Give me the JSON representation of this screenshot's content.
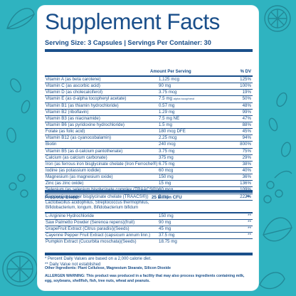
{
  "label": {
    "title": "Supplement Facts",
    "serving_line": "Serving Size: 3 Capsules | Servings Per Container: 30",
    "header": {
      "amount": "Amount Per Serving",
      "dv": "% DV"
    }
  },
  "nutrients": [
    {
      "name": "Vitamin A (as beta carotene)",
      "amount": "1,125 mcg",
      "dv": "125%"
    },
    {
      "name": "Vitamin C (as ascorbic acid)",
      "amount": "90 mg",
      "dv": "100%"
    },
    {
      "name": "Vitamin D (as cholecalciferol)",
      "amount": "3.75 mcg",
      "dv": "19%"
    },
    {
      "name": "Vitamin E (as d-alpha tocopheryl acetate)",
      "amount": "7.5 mg",
      "note": "alpha tocopherol",
      "dv": "50%"
    },
    {
      "name": "Vitamin B1 (as thiamin hydrochloride)",
      "amount": "0.57 mg",
      "dv": "48%"
    },
    {
      "name": "Vitamin B2 (riboflavin)",
      "amount": "1.29 mg",
      "dv": "99%"
    },
    {
      "name": "Vitamin B3 (as niacinamide)",
      "amount": "7.5 mg NE",
      "dv": "47%"
    },
    {
      "name": "Vitamin B6 (as pyridoxine hydrochloride)",
      "amount": "1.5 mg",
      "dv": "88%"
    },
    {
      "name": "Folate (as folic acid)",
      "amount": "180 mcg DFE",
      "dv": "45%"
    },
    {
      "name": "Vitamin B12 (as cyanocobalamin)",
      "amount": "2.25 mcg",
      "dv": "94%"
    },
    {
      "name": "Biotin",
      "amount": "240 mcg",
      "dv": "800%"
    },
    {
      "name": "Vitamin B5 (as d-calcium pantothenate)",
      "amount": "3.75 mg",
      "dv": "75%"
    },
    {
      "name": "Calcium (as calcium carbonate)",
      "amount": "375 mg",
      "dv": "29%"
    },
    {
      "name": "Iron (as ferrous iron bisglycinate chelate (Iron Ferroche®)",
      "amount": "6.75 mg",
      "dv": "38%"
    },
    {
      "name": "Iodine (as potassium iodide)",
      "amount": "60 mcg",
      "dv": "40%"
    },
    {
      "name": "Magnesium (as magnesium oxide)",
      "amount": "150 mg",
      "dv": "36%"
    },
    {
      "name": "Zinc (as zinc oxide)",
      "amount": "15 mg",
      "dv": "136%"
    },
    {
      "name": "Selenium (as selenium bisglycinate complex (TRAACS®))",
      "amount": "60 mcg",
      "dv": "109%"
    },
    {
      "name": "Copper (as copper bisglycinate chelate (TRAACS®))",
      "amount": "2 mg",
      "dv": "222%"
    }
  ],
  "blend": {
    "name": "Probiotic Blend:",
    "amount": "25 Billion CFU",
    "dv": "**",
    "description": "Lactobacillus acidophilus, Streptococcus thermophilus, Bifidobacterium, longum, Bifidobacterium bifidum"
  },
  "others": [
    {
      "name": "L-Arginine Hydrochloride",
      "amount": "150 mg",
      "dv": "**"
    },
    {
      "name": "Saw Palmetto Powder (Serenoa repens)(fruit)",
      "amount": "90 mg",
      "dv": "**"
    },
    {
      "name": "GrapeFruit Extract (Citrus paradisi)(Seeds)",
      "amount": "45 mg",
      "dv": "**"
    },
    {
      "name": "Cayenne Pepper Fruit Extract (capsicum annum linn.)",
      "amount": "37.5 mg",
      "dv": "**"
    },
    {
      "name": "Pumpkin Extract (Cucurbita moschata)(Seeds)",
      "amount": "18.75 mg",
      "dv": ""
    }
  ],
  "footnotes": {
    "dv_note": "* Percent Daily Values are based on a 2,000 calorie diet.",
    "no_dv": "** Daily Value not established",
    "other_ingredients": "Other Ingredients: Plant Cellulose, Magnesium Stearate, Silicon Dioxide",
    "allergen": "ALLERGEN WARNING: This product was produced in a facility that may also process ingredients containing milk, egg, soybeans, shellfish, fish, tree nuts, wheat and peanuts."
  },
  "colors": {
    "background": "#2fb3c0",
    "ink": "#1a4f8a",
    "panel": "#ffffff"
  },
  "icons": [
    "citrus-slice-icon",
    "leaf-icon",
    "seed-icon",
    "saw-palmetto-icon"
  ]
}
